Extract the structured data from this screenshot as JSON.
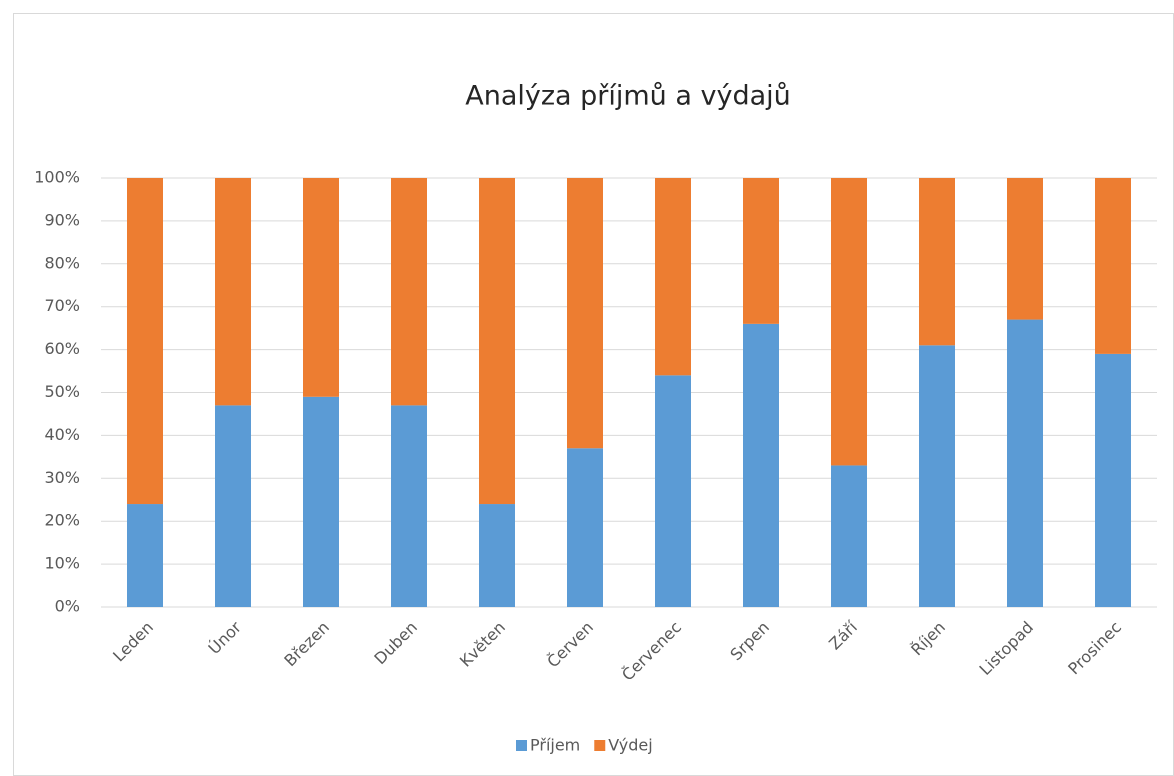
{
  "chart_data": {
    "type": "stacked_bar",
    "title": "Analýza příjmů a výdajů",
    "categories": [
      "Leden",
      "Únor",
      "Březen",
      "Duben",
      "Květen",
      "Červen",
      "Červenec",
      "Srpen",
      "Září",
      "Říjen",
      "Listopad",
      "Prosinec"
    ],
    "series": [
      {
        "name": "Příjem",
        "color": "#5b9bd5",
        "values": [
          24,
          47,
          49,
          47,
          24,
          37,
          54,
          66,
          33,
          61,
          67,
          59
        ]
      },
      {
        "name": "Výdej",
        "color": "#ed7d31",
        "values": [
          76,
          53,
          51,
          53,
          76,
          63,
          46,
          34,
          67,
          39,
          33,
          41
        ]
      }
    ],
    "ylim": [
      0,
      100
    ],
    "yticks": [
      {
        "value": 0,
        "label": "0%"
      },
      {
        "value": 10,
        "label": "10%"
      },
      {
        "value": 20,
        "label": "20%"
      },
      {
        "value": 30,
        "label": "30%"
      },
      {
        "value": 40,
        "label": "40%"
      },
      {
        "value": 50,
        "label": "50%"
      },
      {
        "value": 60,
        "label": "60%"
      },
      {
        "value": 70,
        "label": "70%"
      },
      {
        "value": 80,
        "label": "80%"
      },
      {
        "value": 90,
        "label": "90%"
      },
      {
        "value": 100,
        "label": "100%"
      }
    ],
    "grid": true,
    "legend": "bottom"
  }
}
